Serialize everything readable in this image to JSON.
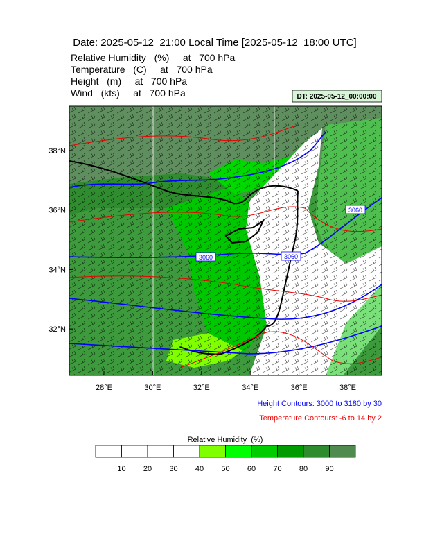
{
  "header": {
    "title": "Date: 2025-05-12  21:00 Local Time [2025-05-12  18:00 UTC]",
    "fields": [
      "Relative Humidity   (%)     at   700 hPa",
      "Temperature   (C)     at   700 hPa",
      "Height   (m)     at   700 hPa",
      "Wind   (kts)     at   700 hPa"
    ],
    "dt_label": "DT: 2025-05-12_00:00:00"
  },
  "map": {
    "lat_labels": [
      "38°N",
      "36°N",
      "34°N",
      "32°N"
    ],
    "lon_labels": [
      "28°E",
      "30°E",
      "32°E",
      "34°E",
      "36°E",
      "38°E"
    ],
    "contour_labels": [
      "3060",
      "3060",
      "3060"
    ]
  },
  "legend": {
    "height": "Height Contours: 3000 to 3180 by 30",
    "temperature": "Temperature Contours: -6 to 14 by 2"
  },
  "colorbar": {
    "title": "Relative Humidity  (%)",
    "labels": [
      10,
      20,
      30,
      40,
      50,
      60,
      70,
      80,
      90
    ],
    "colors": [
      "#ffffff",
      "#ffffff",
      "#ffffff",
      "#ffffff",
      "#80ff00",
      "#00ff00",
      "#00cd00",
      "#009b00",
      "#2e8b2e",
      "#4f8a4f"
    ]
  }
}
